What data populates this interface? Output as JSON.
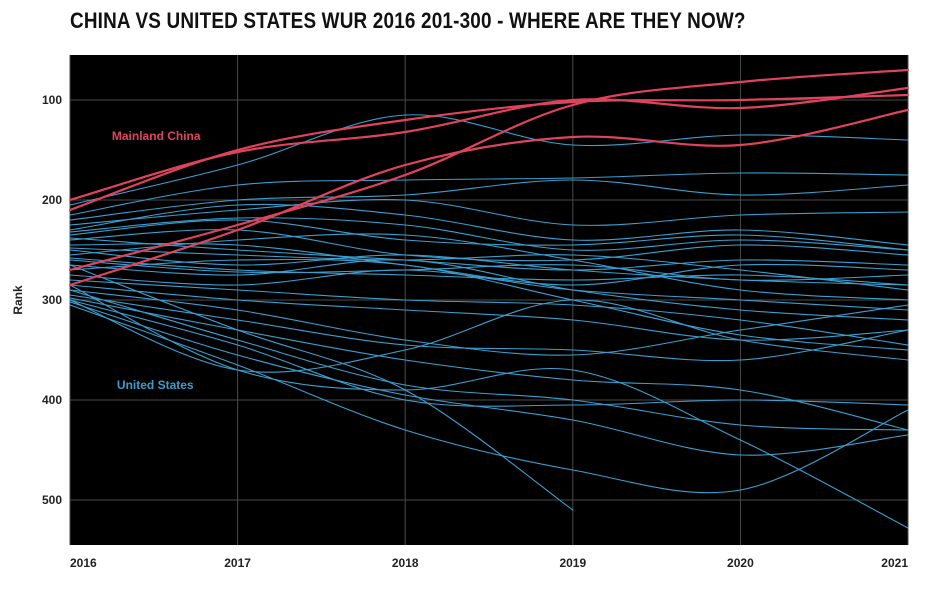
{
  "chart_data": {
    "type": "line",
    "title": "CHINA VS UNITED STATES WUR 2016 201-300 - WHERE ARE THEY NOW?",
    "xlabel": "",
    "ylabel": "Rank",
    "x": [
      "2016",
      "2017",
      "2018",
      "2019",
      "2020",
      "2021"
    ],
    "xlim": [
      2016,
      2021
    ],
    "ylim": [
      545,
      55
    ],
    "y_reversed": true,
    "yticks": [
      100,
      200,
      300,
      400,
      500
    ],
    "grid": true,
    "background": "#000000",
    "grid_color": "#4a4a4a",
    "series_groups": [
      {
        "name": "Mainland China",
        "color": "#e0435d",
        "label_at": [
          2016.25,
          136
        ],
        "lines": [
          [
            200,
            152,
            132,
            100,
            108,
            88
          ],
          [
            210,
            150,
            120,
            102,
            100,
            95
          ],
          [
            270,
            225,
            175,
            105,
            82,
            70
          ],
          [
            285,
            230,
            165,
            137,
            145,
            110
          ]
        ]
      },
      {
        "name": "United States",
        "color": "#3a9fd0",
        "label_at": [
          2016.28,
          385
        ],
        "lines": [
          [
            205,
            165,
            115,
            145,
            135,
            140
          ],
          [
            215,
            185,
            180,
            178,
            173,
            175
          ],
          [
            220,
            200,
            195,
            180,
            195,
            185
          ],
          [
            225,
            210,
            200,
            225,
            215,
            212
          ],
          [
            230,
            205,
            215,
            240,
            230,
            245
          ],
          [
            232,
            218,
            225,
            250,
            240,
            250
          ],
          [
            235,
            220,
            240,
            245,
            235,
            250
          ],
          [
            238,
            250,
            260,
            270,
            260,
            265
          ],
          [
            240,
            230,
            255,
            260,
            245,
            255
          ],
          [
            245,
            245,
            265,
            285,
            265,
            270
          ],
          [
            248,
            255,
            260,
            255,
            270,
            290
          ],
          [
            250,
            265,
            255,
            270,
            280,
            285
          ],
          [
            255,
            240,
            235,
            260,
            290,
            300
          ],
          [
            258,
            270,
            275,
            280,
            275,
            285
          ],
          [
            260,
            272,
            270,
            265,
            280,
            275
          ],
          [
            265,
            275,
            260,
            290,
            310,
            320
          ],
          [
            270,
            260,
            265,
            300,
            335,
            350
          ],
          [
            275,
            285,
            270,
            290,
            300,
            310
          ],
          [
            280,
            290,
            300,
            305,
            320,
            345
          ],
          [
            285,
            300,
            310,
            320,
            340,
            330
          ],
          [
            290,
            310,
            340,
            355,
            330,
            305
          ],
          [
            295,
            320,
            345,
            350,
            360,
            330
          ],
          [
            298,
            330,
            360,
            380,
            390,
            430
          ],
          [
            300,
            345,
            400,
            405,
            400,
            405
          ],
          [
            302,
            355,
            395,
            420,
            455,
            435
          ],
          [
            305,
            365,
            430,
            470,
            490,
            410
          ],
          [
            265,
            330,
            390,
            510,
            null,
            null
          ],
          [
            290,
            340,
            385,
            400,
            425,
            430
          ],
          [
            300,
            370,
            350,
            300,
            340,
            360
          ],
          [
            285,
            370,
            390,
            370,
            440,
            528
          ]
        ]
      }
    ]
  }
}
